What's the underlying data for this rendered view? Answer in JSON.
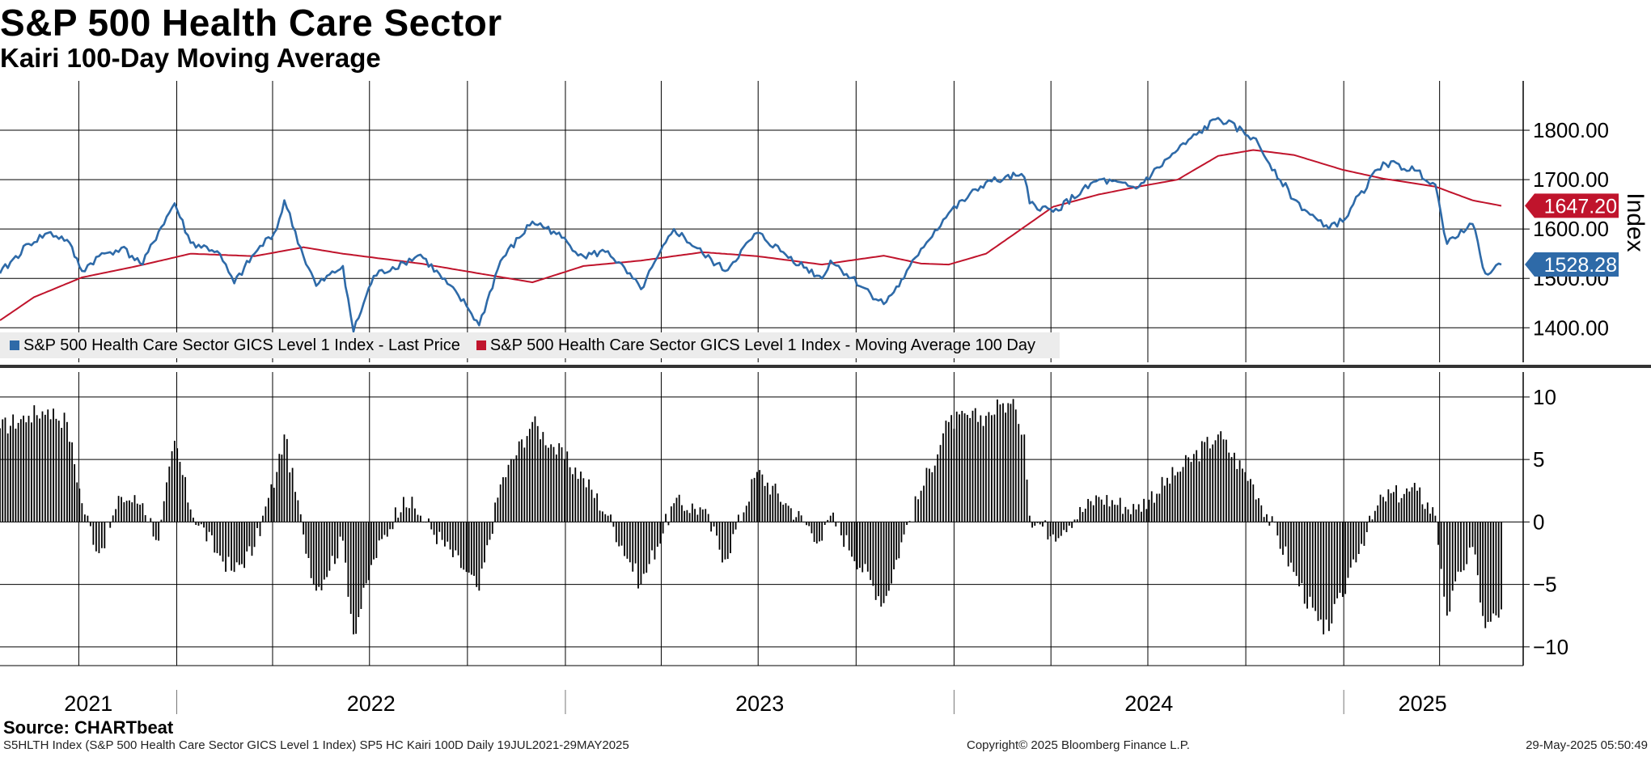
{
  "header": {
    "title": "S&P 500 Health Care Sector",
    "subtitle": "Kairi 100-Day Moving Average"
  },
  "legend": {
    "last_price_label": "S&P 500 Health Care Sector GICS Level 1 Index - Last Price",
    "moving_avg_label": "S&P 500 Health Care Sector GICS Level 1 Index - Moving Average 100 Day"
  },
  "footer": {
    "source": "Source: CHARTbeat",
    "ticker_line": "S5HLTH Index (S&P 500 Health Care Sector GICS Level 1 Index) SP5 HC Kairi 100D  Daily 19JUL2021-29MAY2025",
    "copyright": "Copyright© 2025 Bloomberg Finance L.P.",
    "timestamp": "29-May-2025 05:50:49"
  },
  "colors": {
    "price_line": "#2e6aa8",
    "moving_avg_line": "#c0142c",
    "kairi_bars": "#000000",
    "grid": "#000000",
    "legend_bg": "#ececec"
  },
  "chart_data": [
    {
      "type": "line",
      "title": "S&P 500 Health Care Sector",
      "ylabel": "Index",
      "ylim": [
        1330,
        1900
      ],
      "yticks": [
        "1400.00",
        "1500.00",
        "1600.00",
        "1700.00",
        "1800.00"
      ],
      "x_range": [
        "2021-07-19",
        "2025-05-29"
      ],
      "legend_position": "bottom-left",
      "last_values": {
        "moving_average": "1647.20",
        "last_price": "1528.28"
      },
      "series": [
        {
          "name": "S&P 500 Health Care Sector GICS Level 1 Index - Last Price",
          "points": [
            [
              "2021-07-19",
              1510
            ],
            [
              "2021-08-15",
              1570
            ],
            [
              "2021-09-02",
              1592
            ],
            [
              "2021-09-20",
              1578
            ],
            [
              "2021-10-04",
              1515
            ],
            [
              "2021-10-20",
              1545
            ],
            [
              "2021-11-10",
              1562
            ],
            [
              "2021-11-30",
              1528
            ],
            [
              "2021-12-15",
              1595
            ],
            [
              "2021-12-30",
              1652
            ],
            [
              "2022-01-14",
              1572
            ],
            [
              "2022-02-08",
              1555
            ],
            [
              "2022-02-24",
              1490
            ],
            [
              "2022-03-15",
              1550
            ],
            [
              "2022-04-05",
              1600
            ],
            [
              "2022-04-12",
              1658
            ],
            [
              "2022-04-30",
              1545
            ],
            [
              "2022-05-12",
              1485
            ],
            [
              "2022-06-06",
              1525
            ],
            [
              "2022-06-16",
              1392
            ],
            [
              "2022-07-05",
              1505
            ],
            [
              "2022-08-02",
              1532
            ],
            [
              "2022-08-18",
              1548
            ],
            [
              "2022-09-30",
              1445
            ],
            [
              "2022-10-12",
              1405
            ],
            [
              "2022-11-01",
              1535
            ],
            [
              "2022-12-01",
              1615
            ],
            [
              "2022-12-21",
              1595
            ],
            [
              "2023-01-18",
              1545
            ],
            [
              "2023-02-10",
              1555
            ],
            [
              "2023-03-13",
              1478
            ],
            [
              "2023-04-13",
              1600
            ],
            [
              "2023-05-10",
              1550
            ],
            [
              "2023-05-31",
              1515
            ],
            [
              "2023-06-30",
              1592
            ],
            [
              "2023-07-27",
              1548
            ],
            [
              "2023-08-30",
              1500
            ],
            [
              "2023-09-07",
              1536
            ],
            [
              "2023-10-27",
              1448
            ],
            [
              "2023-11-15",
              1500
            ],
            [
              "2023-12-01",
              1560
            ],
            [
              "2023-12-27",
              1632
            ],
            [
              "2024-01-31",
              1695
            ],
            [
              "2024-02-16",
              1700
            ],
            [
              "2024-02-28",
              1708
            ],
            [
              "2024-03-07",
              1705
            ],
            [
              "2024-03-12",
              1652
            ],
            [
              "2024-04-03",
              1635
            ],
            [
              "2024-05-16",
              1700
            ],
            [
              "2024-06-20",
              1682
            ],
            [
              "2024-07-29",
              1760
            ],
            [
              "2024-09-05",
              1825
            ],
            [
              "2024-10-08",
              1785
            ],
            [
              "2024-11-15",
              1660
            ],
            [
              "2024-12-13",
              1605
            ],
            [
              "2024-12-31",
              1615
            ],
            [
              "2025-01-10",
              1650
            ],
            [
              "2025-02-07",
              1735
            ],
            [
              "2025-03-11",
              1718
            ],
            [
              "2025-03-28",
              1690
            ],
            [
              "2025-04-08",
              1570
            ],
            [
              "2025-04-21",
              1598
            ],
            [
              "2025-05-02",
              1610
            ],
            [
              "2025-05-14",
              1510
            ],
            [
              "2025-05-29",
              1528
            ]
          ]
        },
        {
          "name": "S&P 500 Health Care Sector GICS Level 1 Index - Moving Average 100 Day",
          "points": [
            [
              "2021-07-19",
              1415
            ],
            [
              "2021-08-20",
              1462
            ],
            [
              "2021-10-04",
              1502
            ],
            [
              "2021-11-25",
              1525
            ],
            [
              "2022-01-14",
              1550
            ],
            [
              "2022-03-15",
              1545
            ],
            [
              "2022-04-30",
              1563
            ],
            [
              "2022-06-06",
              1550
            ],
            [
              "2022-08-18",
              1530
            ],
            [
              "2022-10-12",
              1510
            ],
            [
              "2022-12-01",
              1492
            ],
            [
              "2023-01-18",
              1525
            ],
            [
              "2023-03-13",
              1536
            ],
            [
              "2023-05-10",
              1553
            ],
            [
              "2023-06-30",
              1545
            ],
            [
              "2023-08-30",
              1528
            ],
            [
              "2023-10-27",
              1546
            ],
            [
              "2023-12-01",
              1530
            ],
            [
              "2023-12-27",
              1528
            ],
            [
              "2024-01-31",
              1550
            ],
            [
              "2024-02-28",
              1592
            ],
            [
              "2024-04-03",
              1645
            ],
            [
              "2024-05-16",
              1670
            ],
            [
              "2024-06-20",
              1685
            ],
            [
              "2024-07-29",
              1700
            ],
            [
              "2024-09-05",
              1748
            ],
            [
              "2024-10-08",
              1760
            ],
            [
              "2024-11-15",
              1750
            ],
            [
              "2024-12-31",
              1720
            ],
            [
              "2025-02-07",
              1702
            ],
            [
              "2025-03-28",
              1686
            ],
            [
              "2025-05-02",
              1658
            ],
            [
              "2025-05-29",
              1647
            ]
          ]
        }
      ]
    },
    {
      "type": "bar",
      "title": "SP5 HC Kairi 100D",
      "ylim": [
        -11.5,
        12
      ],
      "yticks": [
        "10",
        "5",
        "0",
        "-5",
        "-10"
      ],
      "series": [
        {
          "name": "Kairi 100-Day",
          "points": [
            [
              "2021-07-19",
              7.5
            ],
            [
              "2021-08-15",
              8.5
            ],
            [
              "2021-09-02",
              9.0
            ],
            [
              "2021-09-20",
              8.0
            ],
            [
              "2021-10-04",
              1.5
            ],
            [
              "2021-10-20",
              -2.5
            ],
            [
              "2021-11-10",
              2.0
            ],
            [
              "2021-11-30",
              1.5
            ],
            [
              "2021-12-15",
              -1.5
            ],
            [
              "2021-12-30",
              6.5
            ],
            [
              "2022-01-14",
              1.0
            ],
            [
              "2022-02-08",
              -2.5
            ],
            [
              "2022-02-24",
              -4.0
            ],
            [
              "2022-03-15",
              -2.0
            ],
            [
              "2022-04-05",
              4.0
            ],
            [
              "2022-04-12",
              7.0
            ],
            [
              "2022-04-30",
              -1.0
            ],
            [
              "2022-05-12",
              -5.5
            ],
            [
              "2022-06-06",
              -1.5
            ],
            [
              "2022-06-16",
              -9.0
            ],
            [
              "2022-07-05",
              -3.0
            ],
            [
              "2022-08-02",
              2.0
            ],
            [
              "2022-08-18",
              0.5
            ],
            [
              "2022-09-30",
              -4.0
            ],
            [
              "2022-10-12",
              -5.5
            ],
            [
              "2022-11-01",
              3.0
            ],
            [
              "2022-12-01",
              8.0
            ],
            [
              "2022-12-21",
              6.0
            ],
            [
              "2023-01-18",
              3.5
            ],
            [
              "2023-02-10",
              0.5
            ],
            [
              "2023-03-13",
              -5.0
            ],
            [
              "2023-04-13",
              1.5
            ],
            [
              "2023-05-10",
              1.0
            ],
            [
              "2023-05-31",
              -3.0
            ],
            [
              "2023-06-30",
              4.0
            ],
            [
              "2023-07-27",
              1.5
            ],
            [
              "2023-08-30",
              -1.5
            ],
            [
              "2023-09-07",
              0.5
            ],
            [
              "2023-10-27",
              -6.5
            ],
            [
              "2023-11-15",
              -1.0
            ],
            [
              "2023-12-01",
              2.5
            ],
            [
              "2023-12-27",
              8.0
            ],
            [
              "2024-01-31",
              8.5
            ],
            [
              "2024-02-16",
              9.5
            ],
            [
              "2024-02-28",
              9.0
            ],
            [
              "2024-03-07",
              7.0
            ],
            [
              "2024-03-12",
              0.5
            ],
            [
              "2024-04-03",
              -1.0
            ],
            [
              "2024-05-16",
              2.0
            ],
            [
              "2024-06-20",
              1.0
            ],
            [
              "2024-07-29",
              4.0
            ],
            [
              "2024-09-05",
              7.0
            ],
            [
              "2024-10-08",
              3.0
            ],
            [
              "2024-11-15",
              -4.0
            ],
            [
              "2024-12-13",
              -9.0
            ],
            [
              "2024-12-31",
              -6.0
            ],
            [
              "2025-01-10",
              -3.0
            ],
            [
              "2025-02-07",
              2.0
            ],
            [
              "2025-03-11",
              2.5
            ],
            [
              "2025-03-28",
              0.5
            ],
            [
              "2025-04-08",
              -7.5
            ],
            [
              "2025-04-21",
              -4.0
            ],
            [
              "2025-05-02",
              -2.0
            ],
            [
              "2025-05-14",
              -8.5
            ],
            [
              "2025-05-29",
              -7.0
            ]
          ]
        }
      ]
    }
  ],
  "x_axis": {
    "year_labels": [
      "2021",
      "2022",
      "2023",
      "2024",
      "2025"
    ]
  }
}
